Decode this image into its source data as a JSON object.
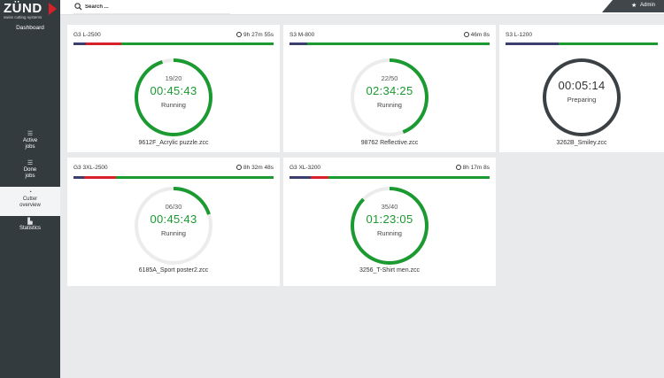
{
  "app": {
    "logo_text": "ZÜND",
    "logo_tagline": "swiss cutting systems",
    "dashboard_label": "Dashboard"
  },
  "search": {
    "placeholder": "Search ..."
  },
  "user": {
    "name": "Admin",
    "icon": "star-icon"
  },
  "nav": [
    {
      "id": "active",
      "label_line1": "Active",
      "label_line2": "jobs",
      "icon": "list-icon",
      "active": false
    },
    {
      "id": "done",
      "label_line1": "Done",
      "label_line2": "jobs",
      "icon": "list-icon",
      "active": false
    },
    {
      "id": "cutter",
      "label_line1": "Cutter",
      "label_line2": "overview",
      "icon": "pie-icon",
      "active": true
    },
    {
      "id": "stats",
      "label_line1": "Statistics",
      "label_line2": "",
      "icon": "chart-icon",
      "active": false
    }
  ],
  "colors": {
    "accent_green": "#1a9a30",
    "red": "#d6202a",
    "sidebar": "#343b3f",
    "prep_ring": "#3a4044"
  },
  "cutters": [
    {
      "name": "G3 L-2500",
      "time": "9h 27m 55s",
      "count": "19/20",
      "timer": "00:45:43",
      "status": "Running",
      "file": "9612F_Acrylic puzzle.zcc",
      "progress": 0.95
    },
    {
      "name": "S3 M-800",
      "time": "46m 8s",
      "count": "22/50",
      "timer": "02:34:25",
      "status": "Running",
      "file": "98762 Reflective.zcc",
      "progress": 0.44
    },
    {
      "name": "S3 L-1200",
      "time": "",
      "count": "",
      "timer": "00:05:14",
      "status": "Preparing",
      "file": "3262B_Smiley.zcc",
      "progress": 1.0
    },
    {
      "name": "G3 3XL-2500",
      "time": "8h 32m 48s",
      "count": "06/30",
      "timer": "00:45:43",
      "status": "Running",
      "file": "6185A_Sport poster2.zcc",
      "progress": 0.2
    },
    {
      "name": "G3 XL-3200",
      "time": "8h 17m 8s",
      "count": "35/40",
      "timer": "01:23:05",
      "status": "Running",
      "file": "3256_T-Shirt men.zcc",
      "progress": 0.875
    }
  ]
}
